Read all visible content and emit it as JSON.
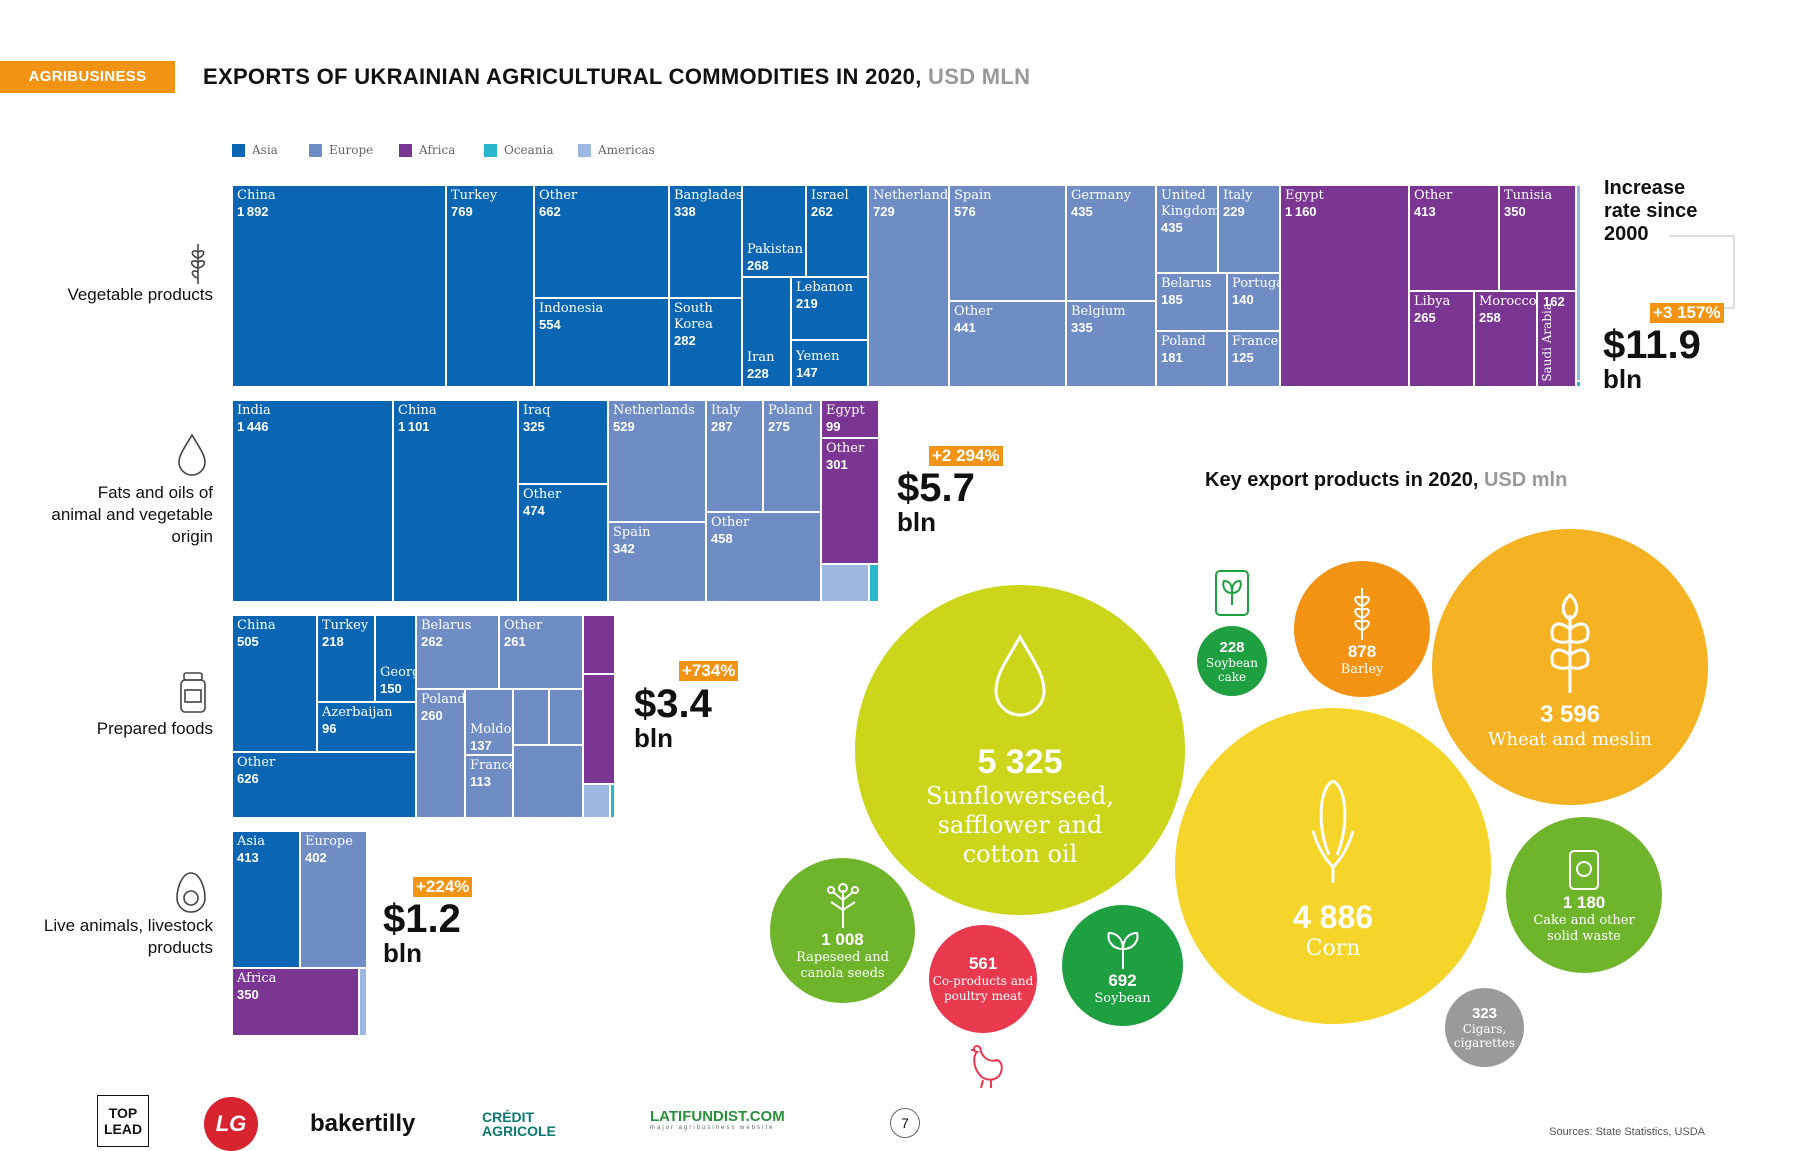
{
  "header": {
    "tag": "AGRIBUSINESS",
    "title": "EXPORTS OF UKRAINIAN AGRICULTURAL COMMODITIES IN 2020,",
    "title_unit": "USD MLN"
  },
  "legend": [
    {
      "label": "Asia",
      "color": "#0a66b2"
    },
    {
      "label": "Europe",
      "color": "#6f8cc4"
    },
    {
      "label": "Africa",
      "color": "#7b3593"
    },
    {
      "label": "Oceania",
      "color": "#29b6cf"
    },
    {
      "label": "Americas",
      "color": "#9cb8e0"
    }
  ],
  "increase_note": "Increase rate since 2000",
  "chart_data": [
    {
      "type": "treemap",
      "group": "Vegetable products",
      "total": "$11.9",
      "total_unit": "bln",
      "increase": "+3 157%",
      "cells": [
        {
          "name": "China",
          "value": 1892,
          "region": "Asia"
        },
        {
          "name": "Turkey",
          "value": 769,
          "region": "Asia"
        },
        {
          "name": "Other",
          "value": 662,
          "region": "Asia"
        },
        {
          "name": "Indonesia",
          "value": 554,
          "region": "Asia"
        },
        {
          "name": "Bangladesh",
          "value": 338,
          "region": "Asia"
        },
        {
          "name": "South Korea",
          "value": 282,
          "region": "Asia"
        },
        {
          "name": "Pakistan",
          "value": 268,
          "region": "Asia"
        },
        {
          "name": "Iran",
          "value": 228,
          "region": "Asia"
        },
        {
          "name": "Israel",
          "value": 262,
          "region": "Asia"
        },
        {
          "name": "Lebanon",
          "value": 219,
          "region": "Asia"
        },
        {
          "name": "Yemen",
          "value": 147,
          "region": "Asia"
        },
        {
          "name": "Netherlands",
          "value": 729,
          "region": "Europe"
        },
        {
          "name": "Spain",
          "value": 576,
          "region": "Europe"
        },
        {
          "name": "Other",
          "value": 441,
          "region": "Europe"
        },
        {
          "name": "Germany",
          "value": 435,
          "region": "Europe"
        },
        {
          "name": "Belgium",
          "value": 335,
          "region": "Europe"
        },
        {
          "name": "United Kingdom",
          "value": 435,
          "region": "Europe"
        },
        {
          "name": "Italy",
          "value": 229,
          "region": "Europe"
        },
        {
          "name": "Belarus",
          "value": 185,
          "region": "Europe"
        },
        {
          "name": "Portugal",
          "value": 140,
          "region": "Europe"
        },
        {
          "name": "Poland",
          "value": 181,
          "region": "Europe"
        },
        {
          "name": "France",
          "value": 125,
          "region": "Europe"
        },
        {
          "name": "Egypt",
          "value": 1160,
          "region": "Africa"
        },
        {
          "name": "Other",
          "value": 413,
          "region": "Africa"
        },
        {
          "name": "Tunisia",
          "value": 350,
          "region": "Africa"
        },
        {
          "name": "Libya",
          "value": 265,
          "region": "Africa"
        },
        {
          "name": "Morocco",
          "value": 258,
          "region": "Africa"
        },
        {
          "name": "Saudi Arabia",
          "value": 162,
          "region": "Asia"
        }
      ]
    },
    {
      "type": "treemap",
      "group": "Fats and oils of animal and vegetable origin",
      "total": "$5.7",
      "total_unit": "bln",
      "increase": "+2 294%",
      "cells": [
        {
          "name": "India",
          "value": 1446,
          "region": "Asia"
        },
        {
          "name": "China",
          "value": 1101,
          "region": "Asia"
        },
        {
          "name": "Iraq",
          "value": 325,
          "region": "Asia"
        },
        {
          "name": "Other",
          "value": 474,
          "region": "Asia"
        },
        {
          "name": "Netherlands",
          "value": 529,
          "region": "Europe"
        },
        {
          "name": "Spain",
          "value": 342,
          "region": "Europe"
        },
        {
          "name": "Italy",
          "value": 287,
          "region": "Europe"
        },
        {
          "name": "Poland",
          "value": 275,
          "region": "Europe"
        },
        {
          "name": "Other",
          "value": 458,
          "region": "Europe"
        },
        {
          "name": "Egypt",
          "value": 99,
          "region": "Africa"
        },
        {
          "name": "Other",
          "value": 301,
          "region": "Africa"
        }
      ]
    },
    {
      "type": "treemap",
      "group": "Prepared foods",
      "total": "$3.4",
      "total_unit": "bln",
      "increase": "+734%",
      "cells": [
        {
          "name": "China",
          "value": 505,
          "region": "Asia"
        },
        {
          "name": "Turkey",
          "value": 218,
          "region": "Asia"
        },
        {
          "name": "Georgia",
          "value": 150,
          "region": "Asia"
        },
        {
          "name": "Azerbaijan",
          "value": 96,
          "region": "Asia"
        },
        {
          "name": "Other",
          "value": 626,
          "region": "Asia"
        },
        {
          "name": "Belarus",
          "value": 262,
          "region": "Europe"
        },
        {
          "name": "Other",
          "value": 261,
          "region": "Europe"
        },
        {
          "name": "Poland",
          "value": 260,
          "region": "Europe"
        },
        {
          "name": "Moldova",
          "value": 137,
          "region": "Europe"
        },
        {
          "name": "France",
          "value": 113,
          "region": "Europe"
        }
      ]
    },
    {
      "type": "treemap",
      "group": "Live animals, livestock products",
      "total": "$1.2",
      "total_unit": "bln",
      "increase": "+224%",
      "cells": [
        {
          "name": "Asia",
          "value": 413,
          "region": "Asia"
        },
        {
          "name": "Europe",
          "value": 402,
          "region": "Europe"
        },
        {
          "name": "Africa",
          "value": 350,
          "region": "Africa"
        }
      ]
    },
    {
      "type": "bubble",
      "title": "Key export products in 2020,",
      "title_unit": "USD mln",
      "items": [
        {
          "label": "Sunflowerseed, safflower and cotton oil",
          "value": "5 325",
          "color": "#ccd51a"
        },
        {
          "label": "Corn",
          "value": "4 886",
          "color": "#f5d52a"
        },
        {
          "label": "Wheat and meslin",
          "value": "3 596",
          "color": "#f5b324"
        },
        {
          "label": "Cake and other solid waste",
          "value": "1 180",
          "color": "#6fb52c"
        },
        {
          "label": "Rapeseed and canola seeds",
          "value": "1 008",
          "color": "#6fb52c"
        },
        {
          "label": "Barley",
          "value": "878",
          "color": "#f39314"
        },
        {
          "label": "Soybean",
          "value": "692",
          "color": "#1fa040"
        },
        {
          "label": "Co-products and poultry meat",
          "value": "561",
          "color": "#e8394f"
        },
        {
          "label": "Cigars, cigarettes",
          "value": "323",
          "color": "#9a9a9a"
        },
        {
          "label": "Soybean cake",
          "value": "228",
          "color": "#1fa040"
        }
      ]
    }
  ],
  "footer": {
    "logos": [
      "TOP LEAD",
      "LG",
      "bakertilly",
      "CRÉDIT AGRICOLE",
      "LATIFUNDIST.COM"
    ],
    "latifundist_sub": "major agribusiness website",
    "page_number": "7",
    "sources": "Sources: State Statistics, USDA"
  }
}
